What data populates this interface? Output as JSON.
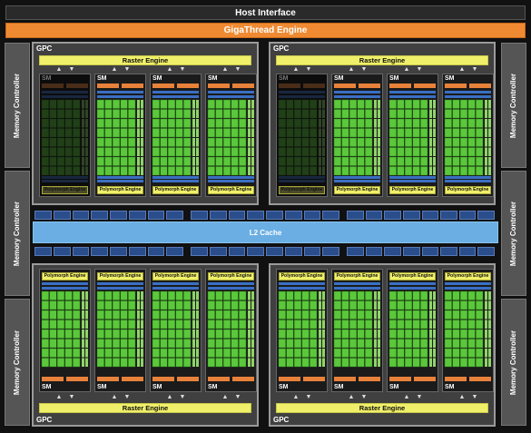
{
  "header": {
    "host_interface": "Host Interface",
    "gigathread": "GigaThread Engine"
  },
  "memory_controller_label": "Memory Controller",
  "gpc_label": "GPC",
  "raster_label": "Raster Engine",
  "sm_label": "SM",
  "polymorph_label": "Polymorph Engine",
  "l2_label": "L2 Cache",
  "gpcs": [
    {
      "position": "top-left",
      "sms": [
        {
          "state": "disabled"
        },
        {
          "state": "active"
        },
        {
          "state": "active"
        },
        {
          "state": "active"
        }
      ]
    },
    {
      "position": "top-right",
      "sms": [
        {
          "state": "disabled"
        },
        {
          "state": "active"
        },
        {
          "state": "active"
        },
        {
          "state": "active"
        }
      ]
    },
    {
      "position": "bottom-left",
      "sms": [
        {
          "state": "active"
        },
        {
          "state": "active"
        },
        {
          "state": "active"
        },
        {
          "state": "active"
        }
      ]
    },
    {
      "position": "bottom-right",
      "sms": [
        {
          "state": "active"
        },
        {
          "state": "active"
        },
        {
          "state": "active"
        },
        {
          "state": "active"
        }
      ]
    }
  ],
  "colors": {
    "gigathread": "#f08a32",
    "raster": "#f0ef6a",
    "cores": "#5ac83a",
    "l2": "#6aaee3",
    "units": "#3a6fc4",
    "dispatch": "#e8823a",
    "dim": "#1d3d12"
  }
}
